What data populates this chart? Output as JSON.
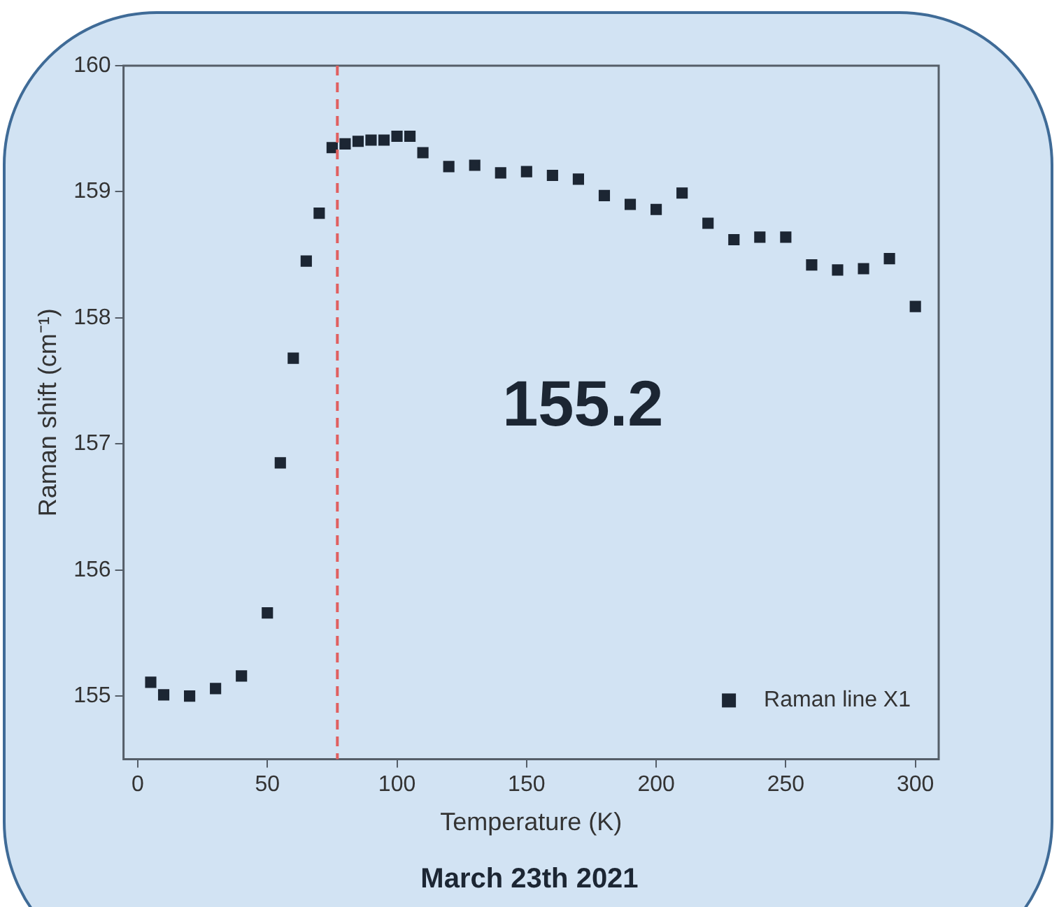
{
  "chart_data": {
    "type": "scatter",
    "xlabel": "Temperature (K)",
    "ylabel": "Raman shift (cm⁻¹)",
    "series": [
      {
        "name": "Raman line X1",
        "color": "#1c2633",
        "x": [
          5,
          10,
          20,
          30,
          40,
          50,
          55,
          60,
          65,
          70,
          75,
          80,
          85,
          90,
          95,
          100,
          105,
          110,
          120,
          130,
          140,
          150,
          160,
          170,
          180,
          190,
          200,
          210,
          220,
          230,
          240,
          250,
          260,
          270,
          280,
          290,
          300
        ],
        "values": [
          155.11,
          155.01,
          155.0,
          155.06,
          155.16,
          155.66,
          156.85,
          157.68,
          158.45,
          158.83,
          159.35,
          159.38,
          159.4,
          159.41,
          159.41,
          159.44,
          159.44,
          159.31,
          159.2,
          159.21,
          159.15,
          159.16,
          159.13,
          159.1,
          158.97,
          158.9,
          158.86,
          158.99,
          158.75,
          158.62,
          158.64,
          158.64,
          158.42,
          158.38,
          158.39,
          158.47,
          158.09
        ]
      }
    ],
    "xlim": [
      -5.5,
      309
    ],
    "xticks": [
      0,
      50,
      100,
      150,
      200,
      250,
      300
    ],
    "ylim": [
      154.5,
      160
    ],
    "yticks": [
      155,
      156,
      157,
      158,
      159,
      160
    ],
    "ref_lines": [
      {
        "axis": "x",
        "value": 77,
        "color": "#e06060",
        "line_style": "dashed"
      }
    ],
    "annotations": [
      "155.2",
      "March 23th 2021"
    ],
    "marker": "square",
    "legend": "bottom right",
    "grid": false
  }
}
